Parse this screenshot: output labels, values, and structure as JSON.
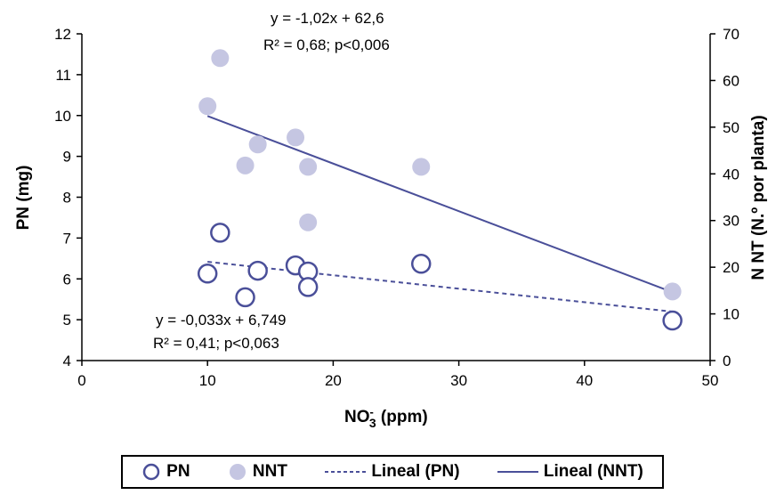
{
  "chart_data": {
    "type": "scatter",
    "xlabel_main": "NO",
    "xlabel_sup": "-",
    "xlabel_sub": "3",
    "xlabel_rest": " (ppm)",
    "ylabel_left": "PN  (mg)",
    "ylabel_right": "N NT (N.º por planta)",
    "xlim": [
      0,
      50
    ],
    "ylim_left": [
      4,
      12
    ],
    "ylim_right": [
      0,
      70
    ],
    "x_ticks": [
      "0",
      "10",
      "20",
      "30",
      "40",
      "50"
    ],
    "y_left_ticks": [
      "4",
      "5",
      "6",
      "7",
      "8",
      "9",
      "10",
      "11",
      "12"
    ],
    "y_right_ticks": [
      "0",
      "10",
      "20",
      "30",
      "40",
      "50",
      "60",
      "70"
    ],
    "grid": false,
    "legend_position": "bottom",
    "series": [
      {
        "name": "PN",
        "axis": "left",
        "marker": "open-circle",
        "color": "#4a4f99",
        "points": [
          [
            10,
            6.13
          ],
          [
            11,
            7.13
          ],
          [
            13,
            5.55
          ],
          [
            14,
            6.2
          ],
          [
            17,
            6.33
          ],
          [
            18,
            6.18
          ],
          [
            18,
            5.8
          ],
          [
            27,
            6.37
          ],
          [
            47,
            4.98
          ]
        ]
      },
      {
        "name": "NNT",
        "axis": "right",
        "marker": "filled-circle",
        "color": "#c5c6e2",
        "points": [
          [
            10,
            54.5
          ],
          [
            11,
            64.8
          ],
          [
            13,
            41.8
          ],
          [
            14,
            46.3
          ],
          [
            17,
            47.8
          ],
          [
            18,
            41.5
          ],
          [
            18,
            29.6
          ],
          [
            27,
            41.5
          ],
          [
            47,
            14.8
          ]
        ]
      }
    ],
    "trendlines": [
      {
        "name": "Lineal (PN)",
        "axis": "left",
        "style": "dashed",
        "color": "#4a4f99",
        "slope": -0.033,
        "intercept": 6.749,
        "x_range": [
          10,
          47
        ],
        "equation": "y =  -0,033x + 6,749",
        "stats": "R² = 0,41; p<0,063"
      },
      {
        "name": "Lineal (NNT)",
        "axis": "right",
        "style": "solid",
        "color": "#4a4f99",
        "slope": -1.02,
        "intercept": 62.6,
        "x_range": [
          10,
          47
        ],
        "equation": "y =  -1,02x + 62,6",
        "stats": "R² = 0,68; p<0,006"
      }
    ]
  },
  "legend": {
    "pn": "PN",
    "nnt": "NNT",
    "lineal_pn": "Lineal (PN)",
    "lineal_nnt": "Lineal (NNT)"
  }
}
